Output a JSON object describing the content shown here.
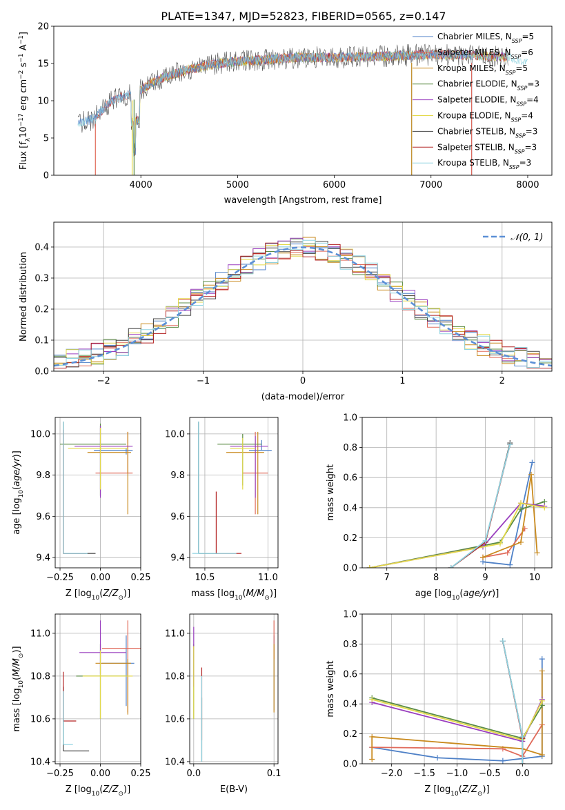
{
  "figure": {
    "title": "PLATE=1347, MJD=52823, FIBERID=0565, z=0.147",
    "models": [
      {
        "name": "Chabrier MILES, N",
        "sub": "SSP",
        "suffix": "=5",
        "color": "#4f81c7"
      },
      {
        "name": "Salpeter MILES, N",
        "sub": "SSP",
        "suffix": "=6",
        "color": "#e06a5a"
      },
      {
        "name": "Kroupa MILES, N",
        "sub": "SSP",
        "suffix": "=5",
        "color": "#c98a1e"
      },
      {
        "name": "Chabrier ELODIE, N",
        "sub": "SSP",
        "suffix": "=3",
        "color": "#5b8c45"
      },
      {
        "name": "Salpeter ELODIE, N",
        "sub": "SSP",
        "suffix": "=4",
        "color": "#9a3fbf"
      },
      {
        "name": "Kroupa ELODIE, N",
        "sub": "SSP",
        "suffix": "=4",
        "color": "#e3d94a"
      },
      {
        "name": "Chabrier STELIB, N",
        "sub": "SSP",
        "suffix": "=3",
        "color": "#444444"
      },
      {
        "name": "Salpeter STELIB, N",
        "sub": "SSP",
        "suffix": "=3",
        "color": "#b22222"
      },
      {
        "name": "Kroupa STELIB, N",
        "sub": "SSP",
        "suffix": "=3",
        "color": "#8fd3e0"
      }
    ]
  },
  "chart_data": [
    {
      "type": "line",
      "xlabel": "wavelength [Angstrom, rest frame]",
      "ylabel": "Flux [fλ10⁻¹⁷ erg cm⁻² s⁻¹ A⁻¹]",
      "xlim": [
        3100,
        8250
      ],
      "ylim": [
        0,
        20
      ],
      "xticks": [
        "4000",
        "5000",
        "6000",
        "7000",
        "8000"
      ],
      "yticks": [
        "0",
        "5",
        "10",
        "15",
        "20"
      ],
      "continuum": {
        "x": [
          3350,
          3500,
          3700,
          3900,
          4000,
          4200,
          4500,
          4800,
          5000,
          5300,
          5600,
          6000,
          6300,
          6600,
          7000,
          7400,
          7800,
          8000
        ],
        "y": [
          7.0,
          7.5,
          10.0,
          11.0,
          11.5,
          13.0,
          14.2,
          15.0,
          15.3,
          15.5,
          15.8,
          15.8,
          15.9,
          16.0,
          16.2,
          16.1,
          15.8,
          15.2
        ]
      },
      "cutoffs": [
        {
          "model": 1,
          "wavelength": 3530
        },
        {
          "model": 5,
          "wavelength": 3910
        },
        {
          "model": 3,
          "wavelength": 3930
        },
        {
          "model": 8,
          "wavelength": 6800
        },
        {
          "model": 2,
          "wavelength": 6800
        },
        {
          "model": 0,
          "wavelength": 7420
        },
        {
          "model": 1,
          "wavelength": 7420
        }
      ]
    },
    {
      "type": "histogram",
      "xlabel": "(data-model)/error",
      "ylabel": "Normed distribution",
      "xlim": [
        -2.5,
        2.5
      ],
      "ylim": [
        0,
        0.48
      ],
      "xticks": [
        "−2",
        "−1",
        "0",
        "1",
        "2"
      ],
      "yticks": [
        "0.0",
        "0.1",
        "0.2",
        "0.3",
        "0.4"
      ],
      "reference": {
        "label": "𝒩(0, 1)",
        "mean": 0,
        "sigma": 1,
        "color": "#5b8fd6"
      }
    },
    {
      "type": "errorbar",
      "xlabel": "Z [log₁₀(Z/Z⊙)]",
      "ylabel": "age  [log₁₀(age/yr)]",
      "xlim": [
        -0.28,
        0.25
      ],
      "ylim": [
        9.35,
        10.08
      ],
      "xticks": [
        "−0.25",
        "0.00",
        "0.25"
      ],
      "yticks": [
        "9.4",
        "9.6",
        "9.8",
        "10.0"
      ]
    },
    {
      "type": "errorbar",
      "xlabel": "mass [log₁₀(M/M⊙)]",
      "ylabel": "",
      "xlim": [
        10.38,
        11.08
      ],
      "ylim": [
        9.35,
        10.08
      ],
      "xticks": [
        "10.5",
        "11.0"
      ],
      "yticks": [
        "9.4",
        "9.6",
        "9.8",
        "10.0"
      ]
    },
    {
      "type": "line",
      "xlabel": "age  [log₁₀(age/yr)]",
      "ylabel": "mass weight",
      "xlim": [
        6.5,
        10.35
      ],
      "ylim": [
        0,
        1
      ],
      "xticks": [
        "7",
        "8",
        "9",
        "10"
      ],
      "yticks": [
        "0.0",
        "0.2",
        "0.4",
        "0.6",
        "0.8",
        "1.0"
      ],
      "series": [
        {
          "model": 0,
          "x": [
            8.95,
            9.5,
            9.95
          ],
          "y": [
            0.04,
            0.02,
            0.7
          ]
        },
        {
          "model": 1,
          "x": [
            8.95,
            9.45,
            9.8
          ],
          "y": [
            0.07,
            0.1,
            0.26
          ]
        },
        {
          "model": 2,
          "x": [
            8.95,
            9.72,
            9.93,
            10.05
          ],
          "y": [
            0.07,
            0.17,
            0.62,
            0.1
          ]
        },
        {
          "model": 3,
          "x": [
            6.65,
            9.3,
            9.72,
            10.2
          ],
          "y": [
            0.0,
            0.17,
            0.39,
            0.44
          ]
        },
        {
          "model": 4,
          "x": [
            6.65,
            8.95,
            9.72,
            10.2
          ],
          "y": [
            0.0,
            0.14,
            0.43,
            0.41
          ]
        },
        {
          "model": 5,
          "x": [
            6.65,
            9.3,
            9.72,
            10.2
          ],
          "y": [
            0.0,
            0.16,
            0.43,
            0.4
          ]
        },
        {
          "model": 6,
          "x": [
            8.3,
            9.0,
            9.5
          ],
          "y": [
            0.0,
            0.17,
            0.83
          ]
        },
        {
          "model": 7,
          "x": [
            8.3,
            9.0,
            9.5
          ],
          "y": [
            0.0,
            0.17,
            0.82
          ]
        },
        {
          "model": 8,
          "x": [
            8.3,
            9.0,
            9.5
          ],
          "y": [
            0.0,
            0.18,
            0.82
          ]
        }
      ]
    },
    {
      "type": "errorbar",
      "xlabel": "Z [log₁₀(Z/Z⊙)]",
      "ylabel": "mass [log₁₀(M/M⊙)]",
      "xlim": [
        -0.28,
        0.25
      ],
      "ylim": [
        10.39,
        11.09
      ],
      "xticks": [
        "−0.25",
        "0.00",
        "0.25"
      ],
      "yticks": [
        "10.4",
        "10.6",
        "10.8",
        "11.0"
      ]
    },
    {
      "type": "errorbar",
      "xlabel": "E(B-V)",
      "ylabel": "",
      "xlim": [
        -0.005,
        0.105
      ],
      "ylim": [
        10.39,
        11.09
      ],
      "xticks": [
        "0.0",
        "0.1"
      ],
      "yticks": [
        "10.4",
        "10.6",
        "10.8",
        "11.0"
      ]
    },
    {
      "type": "line",
      "xlabel": "Z [log₁₀(Z/Z⊙)]",
      "ylabel": "mass weight",
      "xlim": [
        -2.45,
        0.45
      ],
      "ylim": [
        0,
        1
      ],
      "xticks": [
        "−2.0",
        "−1.5",
        "−1.0",
        "−0.5",
        "0.0"
      ],
      "yticks": [
        "0.0",
        "0.2",
        "0.4",
        "0.6",
        "0.8",
        "1.0"
      ],
      "series": [
        {
          "model": 0,
          "x": [
            -2.3,
            -1.3,
            -0.3,
            0.3,
            0.3
          ],
          "y": [
            0.11,
            0.04,
            0.02,
            0.05,
            0.7
          ]
        },
        {
          "model": 1,
          "x": [
            -2.3,
            -0.3,
            0.0,
            0.3
          ],
          "y": [
            0.11,
            0.1,
            0.05,
            0.26
          ]
        },
        {
          "model": 2,
          "x": [
            -2.3,
            -2.3,
            0.0,
            0.3,
            0.3
          ],
          "y": [
            0.03,
            0.18,
            0.1,
            0.06,
            0.62
          ]
        },
        {
          "model": 3,
          "x": [
            -2.3,
            0.0,
            0.3
          ],
          "y": [
            0.44,
            0.17,
            0.39
          ]
        },
        {
          "model": 4,
          "x": [
            -2.3,
            0.0,
            0.3
          ],
          "y": [
            0.41,
            0.15,
            0.43
          ]
        },
        {
          "model": 5,
          "x": [
            -2.3,
            0.0,
            0.3
          ],
          "y": [
            0.43,
            0.16,
            0.42
          ]
        },
        {
          "model": 6,
          "x": [
            -0.3,
            0.0,
            0.0
          ],
          "y": [
            0.82,
            0.18,
            0.0
          ]
        },
        {
          "model": 7,
          "x": [
            -0.3,
            0.0,
            0.0
          ],
          "y": [
            0.82,
            0.17,
            0.0
          ]
        },
        {
          "model": 8,
          "x": [
            -0.3,
            0.0,
            0.0
          ],
          "y": [
            0.82,
            0.18,
            0.0
          ]
        }
      ]
    }
  ]
}
